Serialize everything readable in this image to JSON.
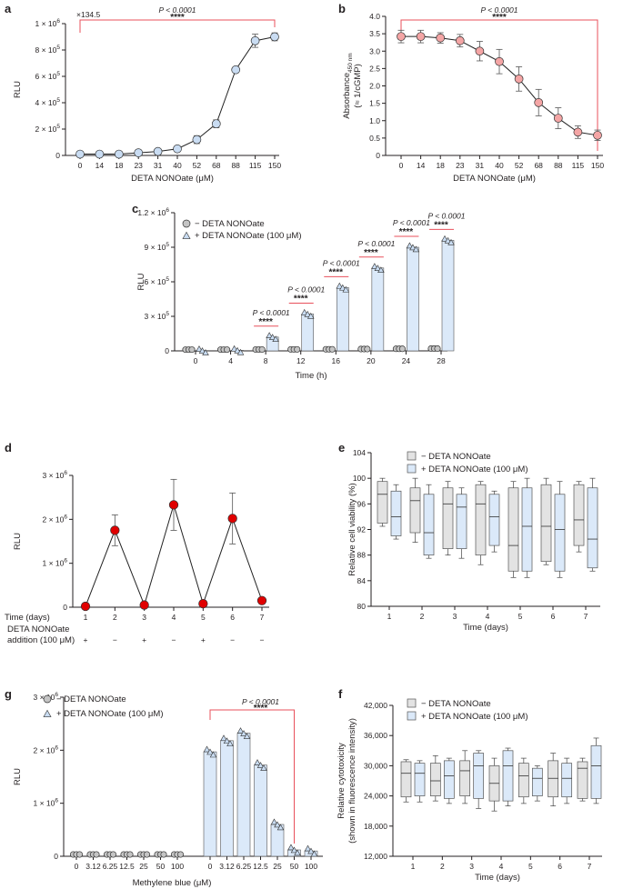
{
  "colors": {
    "blue_fill": "#dbe9f9",
    "blue_marker": "#c9dcf2",
    "grey_fill": "#e3e3e3",
    "grey_marker": "#c4c4c4",
    "pink_marker": "#f4a5a5",
    "red_marker": "#e00000",
    "sig_line": "#e8505b",
    "axis": "#231f20"
  },
  "chart_data": [
    {
      "panel": "a",
      "type": "line",
      "categories": [
        "0",
        "14",
        "18",
        "23",
        "31",
        "40",
        "52",
        "68",
        "88",
        "115",
        "150"
      ],
      "values": [
        0.01,
        0.01,
        0.01,
        0.02,
        0.03,
        0.05,
        0.12,
        0.24,
        0.65,
        0.87,
        0.9
      ],
      "errors": [
        0.003,
        0.003,
        0.003,
        0.005,
        0.008,
        0.01,
        0.03,
        0.03,
        0.02,
        0.05,
        0.03
      ],
      "xlabel": "DETA NONOate (μM)",
      "ylabel": "RLU",
      "ylim": [
        0,
        1
      ],
      "yticks": [
        "0",
        "2 × 10⁵",
        "4 × 10⁵",
        "6 × 10⁵",
        "8 × 10⁵",
        "1 × 10⁶"
      ],
      "fold_label": "×134.5",
      "pvalue": "P < 0.0001",
      "stars": "****"
    },
    {
      "panel": "b",
      "type": "line",
      "categories": [
        "0",
        "14",
        "18",
        "23",
        "31",
        "40",
        "52",
        "68",
        "88",
        "115",
        "150"
      ],
      "values": [
        3.42,
        3.42,
        3.38,
        3.3,
        3.0,
        2.7,
        2.2,
        1.52,
        1.07,
        0.67,
        0.58
      ],
      "errors": [
        0.18,
        0.18,
        0.15,
        0.18,
        0.28,
        0.35,
        0.35,
        0.38,
        0.3,
        0.18,
        0.15
      ],
      "xlabel": "DETA NONOate (μM)",
      "ylabel_main": "Absorbance",
      "ylabel_sub": "450 nm",
      "ylabel_line2": "(≈ 1/cGMP)",
      "ylim": [
        0,
        4
      ],
      "yticks": [
        "0",
        "0.5",
        "1.0",
        "1.5",
        "2.0",
        "2.5",
        "3.0",
        "3.5",
        "4.0"
      ],
      "pvalue": "P < 0.0001",
      "stars": "****"
    },
    {
      "panel": "c",
      "type": "bar",
      "categories": [
        "0",
        "4",
        "8",
        "12",
        "16",
        "20",
        "24",
        "28"
      ],
      "series": [
        {
          "name": "− DETA NONOate",
          "values": [
            0.003,
            0.003,
            0.004,
            0.005,
            0.006,
            0.008,
            0.01,
            0.012
          ]
        },
        {
          "name": "+ DETA NONOate (100 μM)",
          "values": [
            0.003,
            0.005,
            0.12,
            0.32,
            0.55,
            0.72,
            0.9,
            0.96
          ]
        }
      ],
      "xlabel": "Time (h)",
      "ylabel": "RLU",
      "ylim": [
        0,
        1.2
      ],
      "yticks": [
        "0",
        "3 × 10⁵",
        "6 × 10⁵",
        "9 × 10⁵",
        "1.2 × 10⁶"
      ],
      "pvalue": "P < 0.0001",
      "stars": "****"
    },
    {
      "panel": "d",
      "type": "line",
      "categories": [
        "1",
        "2",
        "3",
        "4",
        "5",
        "6",
        "7"
      ],
      "values": [
        0.02,
        1.75,
        0.05,
        2.33,
        0.08,
        2.02,
        0.15
      ],
      "errors": [
        0.0,
        0.35,
        0.0,
        0.58,
        0.0,
        0.58,
        0.0
      ],
      "xlabel": "Time (days)",
      "addition_label_1": "DETA NONOate",
      "addition_label_2": "addition (100 μM)",
      "addition": [
        "+",
        "−",
        "+",
        "−",
        "+",
        "−",
        "−"
      ],
      "ylabel": "RLU",
      "ylim": [
        0,
        3
      ],
      "yticks": [
        "0",
        "1 × 10⁶",
        "2 × 10⁶",
        "3 × 10⁶"
      ]
    },
    {
      "panel": "e",
      "type": "box",
      "categories": [
        "1",
        "2",
        "3",
        "4",
        "5",
        "6",
        "7"
      ],
      "series": [
        {
          "name": "− DETA NONOate",
          "boxes": [
            [
              92.5,
              93,
              97.5,
              99.5,
              100
            ],
            [
              90,
              91.5,
              96.5,
              98.5,
              100
            ],
            [
              88,
              89,
              96,
              98.5,
              99.5
            ],
            [
              86.5,
              88,
              96,
              99,
              99.5
            ],
            [
              84.5,
              85.5,
              89.5,
              98.5,
              99.5
            ],
            [
              86.5,
              87,
              92.5,
              99,
              100
            ],
            [
              88.5,
              89.5,
              93.5,
              99,
              99.5
            ]
          ]
        },
        {
          "name": "+ DETA NONOate (100 μM)",
          "boxes": [
            [
              90.5,
              91,
              94,
              98,
              99
            ],
            [
              87.5,
              88,
              91.5,
              97.5,
              99
            ],
            [
              87.5,
              89,
              95.5,
              97.5,
              98.5
            ],
            [
              88.5,
              89.5,
              94,
              97.5,
              98
            ],
            [
              84.5,
              85.5,
              92.5,
              98.5,
              100
            ],
            [
              84.5,
              85.5,
              92,
              97.5,
              99.5
            ],
            [
              85.5,
              86,
              90.5,
              98.5,
              100
            ]
          ]
        }
      ],
      "xlabel": "Time (days)",
      "ylabel": "Relative cell viability (%)",
      "ylim": [
        80,
        104
      ],
      "yticks": [
        "80",
        "84",
        "88",
        "92",
        "96",
        "100",
        "104"
      ]
    },
    {
      "panel": "g",
      "type": "bar",
      "categories": [
        "0",
        "3.12",
        "6.25",
        "12.5",
        "25",
        "50",
        "100"
      ],
      "series": [
        {
          "name": "− DETA NONOate",
          "values": [
            0.01,
            0.01,
            0.01,
            0.01,
            0.01,
            0.01,
            0.01
          ]
        },
        {
          "name": "+ DETA NONOate (100 μM)",
          "values": [
            1.97,
            2.18,
            2.32,
            1.72,
            0.6,
            0.12,
            0.1
          ]
        }
      ],
      "xlabel": "Methylene blue (μM)",
      "ylabel": "RLU",
      "ylim": [
        0,
        3
      ],
      "yticks": [
        "0",
        "1 × 10⁶",
        "2 × 10⁶",
        "3 × 10⁶"
      ],
      "pvalue": "P < 0.0001",
      "stars": "****"
    },
    {
      "panel": "f",
      "type": "box",
      "categories": [
        "1",
        "2",
        "3",
        "4",
        "5",
        "6",
        "7"
      ],
      "series": [
        {
          "name": "− DETA NONOate",
          "boxes": [
            [
              22800,
              23800,
              28500,
              30800,
              31200
            ],
            [
              23000,
              24000,
              27000,
              30500,
              32000
            ],
            [
              22500,
              24000,
              29000,
              31000,
              33000
            ],
            [
              21000,
              23000,
              26500,
              30000,
              31500
            ],
            [
              22500,
              23800,
              28000,
              30500,
              31500
            ],
            [
              22000,
              23800,
              27500,
              31000,
              32500
            ],
            [
              23000,
              23500,
              29500,
              30800,
              31500
            ]
          ]
        },
        {
          "name": "+ DETA NONOate (100 μM)",
          "boxes": [
            [
              22800,
              24000,
              28500,
              30500,
              31000
            ],
            [
              22500,
              23500,
              28000,
              31000,
              31500
            ],
            [
              21500,
              23500,
              30000,
              32500,
              33000
            ],
            [
              22000,
              23000,
              30000,
              33000,
              33500
            ],
            [
              23000,
              24000,
              27500,
              29500,
              30000
            ],
            [
              22500,
              23800,
              27500,
              30500,
              31500
            ],
            [
              22500,
              23500,
              30000,
              34000,
              35500
            ]
          ]
        }
      ],
      "xlabel": "Time (days)",
      "ylabel_line1": "Relative cytotoxicity",
      "ylabel_line2": "(shown in fluorescence intensity)",
      "ylim": [
        12000,
        42000
      ],
      "yticks": [
        "12,000",
        "18,000",
        "24,000",
        "30,000",
        "36,000",
        "42,000"
      ]
    }
  ]
}
